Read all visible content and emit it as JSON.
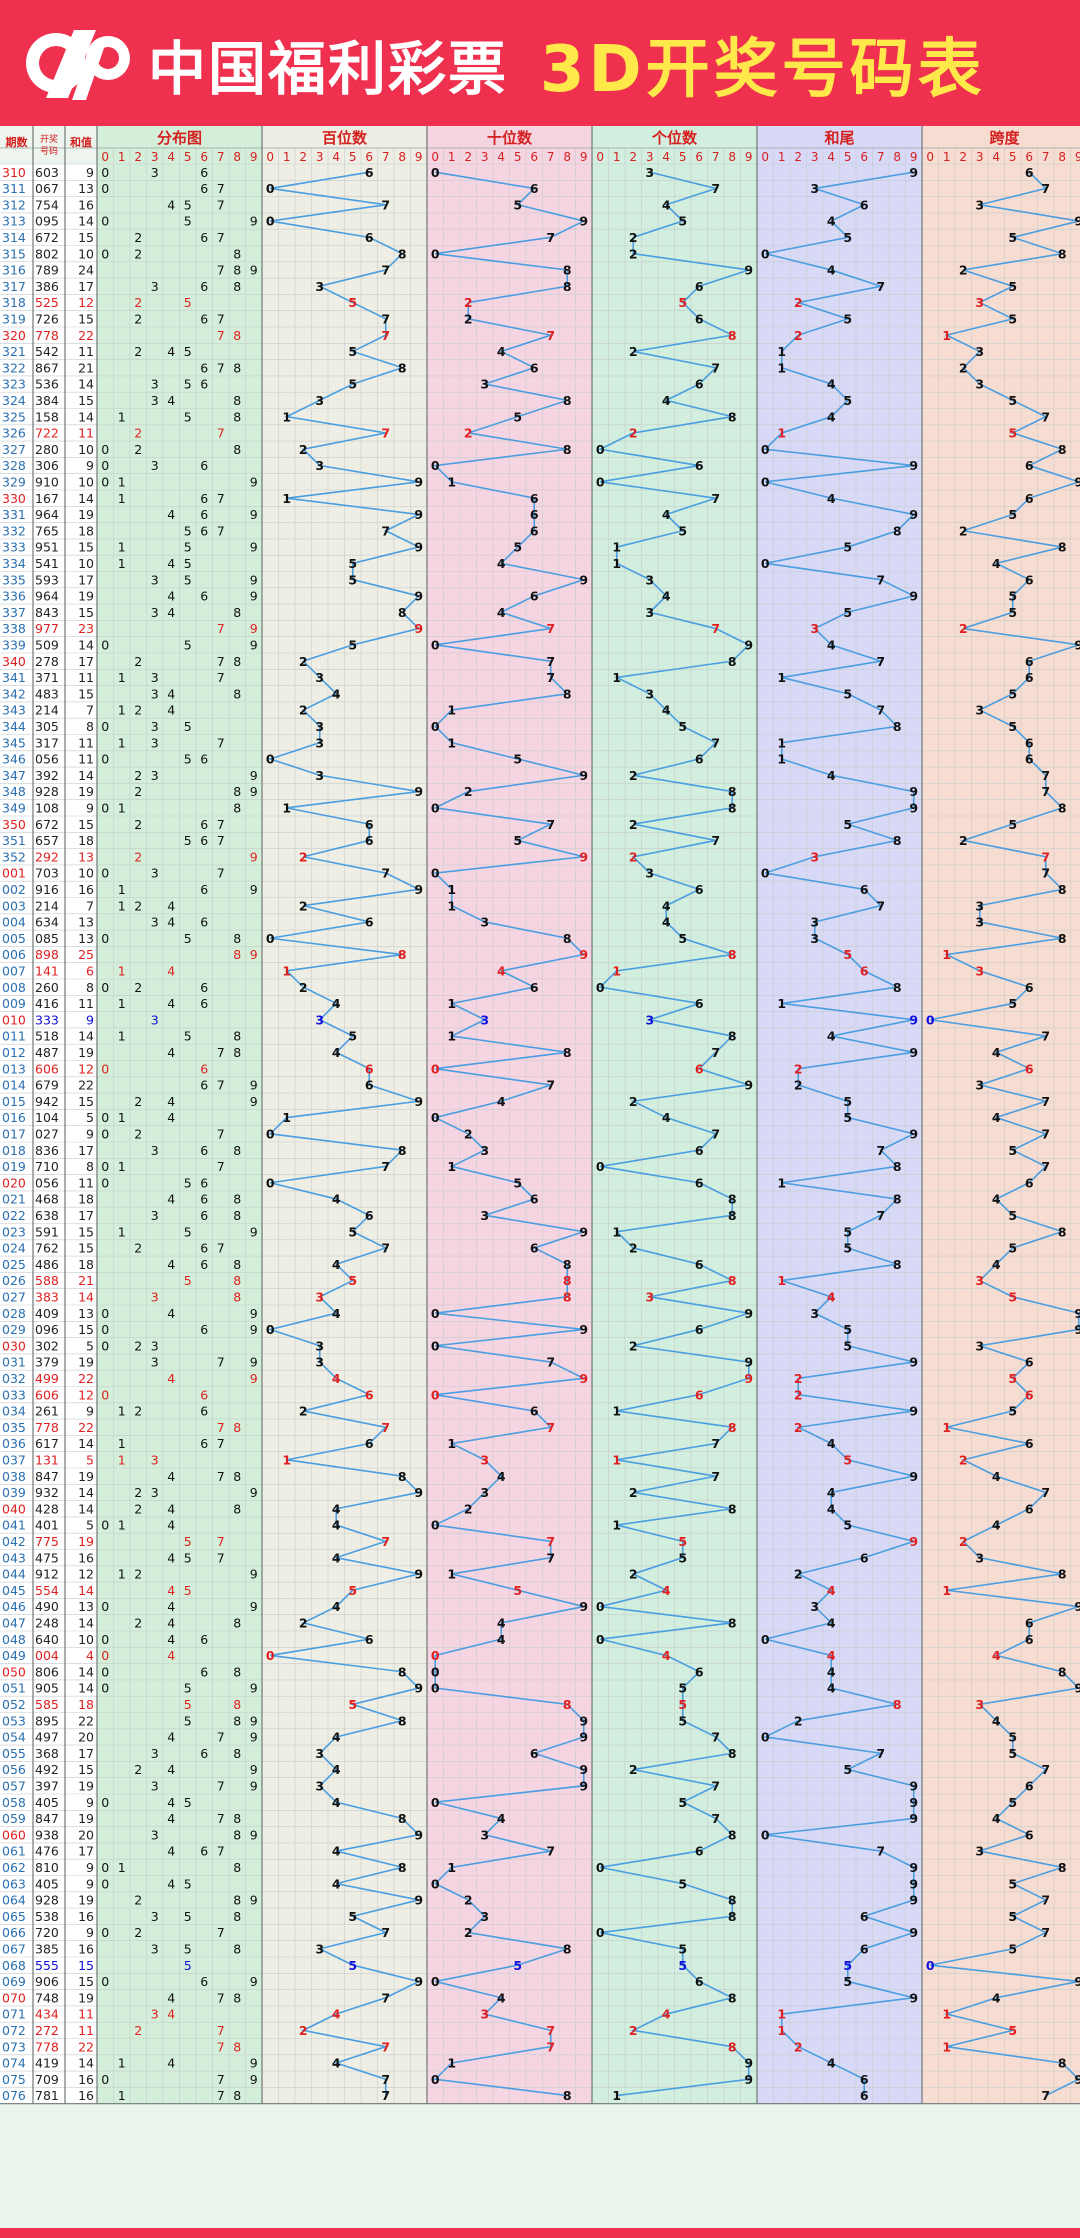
{
  "header": {
    "brand": "中国福利彩票",
    "title": "3D开奖号码表"
  },
  "columns": {
    "period": "期数",
    "number": "开奖号码",
    "sum": "和值",
    "groups": [
      "分布图",
      "百位数",
      "十位数",
      "个位数",
      "和尾",
      "跨度"
    ],
    "digits": [
      "0",
      "1",
      "2",
      "3",
      "4",
      "5",
      "6",
      "7",
      "8",
      "9"
    ]
  },
  "colors": {
    "banner": "#f0304f",
    "title": "#ffe84a",
    "line": "#4a9ee0",
    "period_special": "#e02020",
    "repeat_red": "#e02020",
    "leopard_blue": "#1010dd",
    "group_backgrounds": [
      "#d3efd9",
      "#eeeee5",
      "#f6d5e2",
      "#d1eede",
      "#d8d9f6",
      "#f7dcd2"
    ]
  },
  "chart_data": {
    "type": "table",
    "periods": [
      "310",
      "311",
      "312",
      "313",
      "314",
      "315",
      "316",
      "317",
      "318",
      "319",
      "320",
      "321",
      "322",
      "323",
      "324",
      "325",
      "326",
      "327",
      "328",
      "329",
      "330",
      "331",
      "332",
      "333",
      "334",
      "335",
      "336",
      "337",
      "338",
      "339",
      "340",
      "341",
      "342",
      "343",
      "344",
      "345",
      "346",
      "347",
      "348",
      "349",
      "350",
      "351",
      "352",
      "001",
      "002",
      "003",
      "004",
      "005",
      "006",
      "007",
      "008",
      "009",
      "010",
      "011",
      "012",
      "013",
      "014",
      "015",
      "016",
      "017",
      "018",
      "019",
      "020",
      "021",
      "022",
      "023",
      "024",
      "025",
      "026",
      "027",
      "028",
      "029",
      "030",
      "031",
      "032",
      "033",
      "034",
      "035",
      "036",
      "037",
      "038",
      "039",
      "040",
      "041",
      "042",
      "043",
      "044",
      "045",
      "046",
      "047",
      "048",
      "049",
      "050",
      "051",
      "052",
      "053",
      "054",
      "055",
      "056",
      "057",
      "058",
      "059",
      "060",
      "061",
      "062",
      "063",
      "064",
      "065",
      "066",
      "067",
      "068",
      "069",
      "070",
      "071",
      "072",
      "073",
      "074",
      "075",
      "076"
    ],
    "numbers": [
      "603",
      "067",
      "754",
      "095",
      "672",
      "802",
      "789",
      "386",
      "525",
      "726",
      "778",
      "542",
      "867",
      "536",
      "384",
      "158",
      "722",
      "280",
      "306",
      "910",
      "167",
      "964",
      "765",
      "951",
      "541",
      "593",
      "964",
      "843",
      "977",
      "509",
      "278",
      "371",
      "483",
      "214",
      "305",
      "317",
      "056",
      "392",
      "928",
      "108",
      "672",
      "657",
      "292",
      "703",
      "916",
      "214",
      "634",
      "085",
      "898",
      "141",
      "260",
      "416",
      "333",
      "518",
      "487",
      "606",
      "679",
      "942",
      "104",
      "027",
      "836",
      "710",
      "056",
      "468",
      "638",
      "591",
      "762",
      "486",
      "588",
      "383",
      "409",
      "096",
      "302",
      "379",
      "499",
      "606",
      "261",
      "778",
      "617",
      "131",
      "847",
      "932",
      "428",
      "401",
      "775",
      "475",
      "912",
      "554",
      "490",
      "248",
      "640",
      "004",
      "806",
      "905",
      "585",
      "895",
      "497",
      "368",
      "492",
      "397",
      "405",
      "847",
      "938",
      "476",
      "810",
      "405",
      "928",
      "538",
      "720",
      "385",
      "555",
      "906",
      "748",
      "434",
      "272",
      "778",
      "419",
      "709",
      "781"
    ],
    "sums": [
      9,
      13,
      16,
      14,
      15,
      10,
      24,
      17,
      12,
      15,
      22,
      11,
      21,
      14,
      15,
      14,
      11,
      10,
      9,
      10,
      14,
      19,
      18,
      15,
      10,
      17,
      19,
      15,
      23,
      14,
      17,
      11,
      15,
      7,
      8,
      11,
      11,
      14,
      19,
      9,
      15,
      18,
      13,
      10,
      16,
      7,
      13,
      13,
      25,
      6,
      8,
      11,
      9,
      14,
      19,
      12,
      22,
      15,
      5,
      9,
      17,
      8,
      11,
      18,
      17,
      15,
      15,
      18,
      21,
      14,
      13,
      15,
      5,
      19,
      22,
      12,
      9,
      22,
      14,
      5,
      19,
      14,
      14,
      5,
      19,
      16,
      12,
      14,
      13,
      14,
      10,
      4,
      14,
      14,
      18,
      22,
      20,
      17,
      15,
      19,
      9,
      19,
      20,
      17,
      9,
      9,
      19,
      16,
      9,
      16,
      15,
      15,
      19,
      11,
      11,
      22,
      14,
      16,
      16
    ],
    "groups": [
      "分布图",
      "百位数",
      "十位数",
      "个位数",
      "和尾",
      "跨度"
    ]
  }
}
